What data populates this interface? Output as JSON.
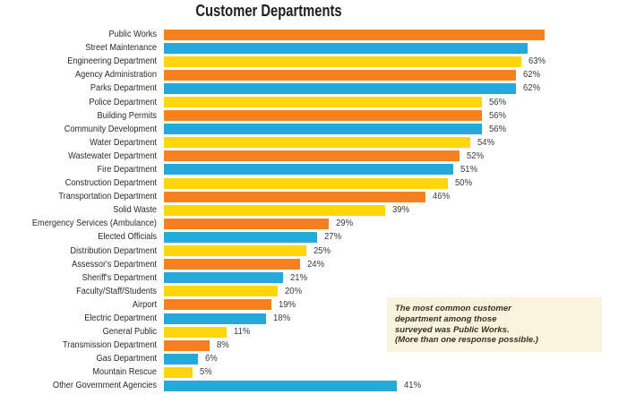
{
  "title": "Customer Departments",
  "palette": {
    "orange": "#F5821F",
    "blue": "#25A8DC",
    "yellow": "#FFD60A"
  },
  "note": {
    "bg": "#FBF3DC",
    "lines": [
      "The most common customer",
      "department among those",
      "surveyed was Public Works.",
      "(More than one response possible.)"
    ]
  },
  "chart_data": {
    "type": "bar",
    "orientation": "horizontal",
    "unit": "%",
    "title": "Customer Departments",
    "xlim": [
      0,
      67
    ],
    "value_labels_shown": true,
    "rows": [
      {
        "label": "Public Works",
        "value": 67,
        "value_label": "",
        "color": "orange",
        "clipped_at_right_edge": true
      },
      {
        "label": "Street Maintenance",
        "value": 64,
        "value_label": "",
        "color": "blue",
        "clipped_at_right_edge": true
      },
      {
        "label": "Engineering Department",
        "value": 63,
        "value_label": "63%",
        "color": "yellow"
      },
      {
        "label": "Agency Administration",
        "value": 62,
        "value_label": "62%",
        "color": "orange"
      },
      {
        "label": "Parks Department",
        "value": 62,
        "value_label": "62%",
        "color": "blue"
      },
      {
        "label": "Police Department",
        "value": 56,
        "value_label": "56%",
        "color": "yellow"
      },
      {
        "label": "Building Permits",
        "value": 56,
        "value_label": "56%",
        "color": "orange"
      },
      {
        "label": "Community Development",
        "value": 56,
        "value_label": "56%",
        "color": "blue"
      },
      {
        "label": "Water Department",
        "value": 54,
        "value_label": "54%",
        "color": "yellow"
      },
      {
        "label": "Wastewater Department",
        "value": 52,
        "value_label": "52%",
        "color": "orange"
      },
      {
        "label": "Fire Department",
        "value": 51,
        "value_label": "51%",
        "color": "blue"
      },
      {
        "label": "Construction Department",
        "value": 50,
        "value_label": "50%",
        "color": "yellow"
      },
      {
        "label": "Transportation Department",
        "value": 46,
        "value_label": "46%",
        "color": "orange"
      },
      {
        "label": "Solid Waste",
        "value": 39,
        "value_label": "39%",
        "color": "yellow"
      },
      {
        "label": "Emergency Services (Ambulance)",
        "value": 29,
        "value_label": "29%",
        "color": "orange"
      },
      {
        "label": "Elected Officials",
        "value": 27,
        "value_label": "27%",
        "color": "blue"
      },
      {
        "label": "Distribution Department",
        "value": 25,
        "value_label": "25%",
        "color": "yellow"
      },
      {
        "label": "Assessor's Department",
        "value": 24,
        "value_label": "24%",
        "color": "orange"
      },
      {
        "label": "Sheriff's Department",
        "value": 21,
        "value_label": "21%",
        "color": "blue"
      },
      {
        "label": "Faculty/Staff/Students",
        "value": 20,
        "value_label": "20%",
        "color": "yellow"
      },
      {
        "label": "Airport",
        "value": 19,
        "value_label": "19%",
        "color": "orange"
      },
      {
        "label": "Electric Department",
        "value": 18,
        "value_label": "18%",
        "color": "blue"
      },
      {
        "label": "General Public",
        "value": 11,
        "value_label": "11%",
        "color": "yellow"
      },
      {
        "label": "Transmission Department",
        "value": 8,
        "value_label": "8%",
        "color": "orange"
      },
      {
        "label": "Gas Department",
        "value": 6,
        "value_label": "6%",
        "color": "blue"
      },
      {
        "label": "Mountain Rescue",
        "value": 5,
        "value_label": "5%",
        "color": "yellow"
      },
      {
        "label": "Other Government Agencies",
        "value": 41,
        "value_label": "41%",
        "color": "blue"
      }
    ]
  }
}
